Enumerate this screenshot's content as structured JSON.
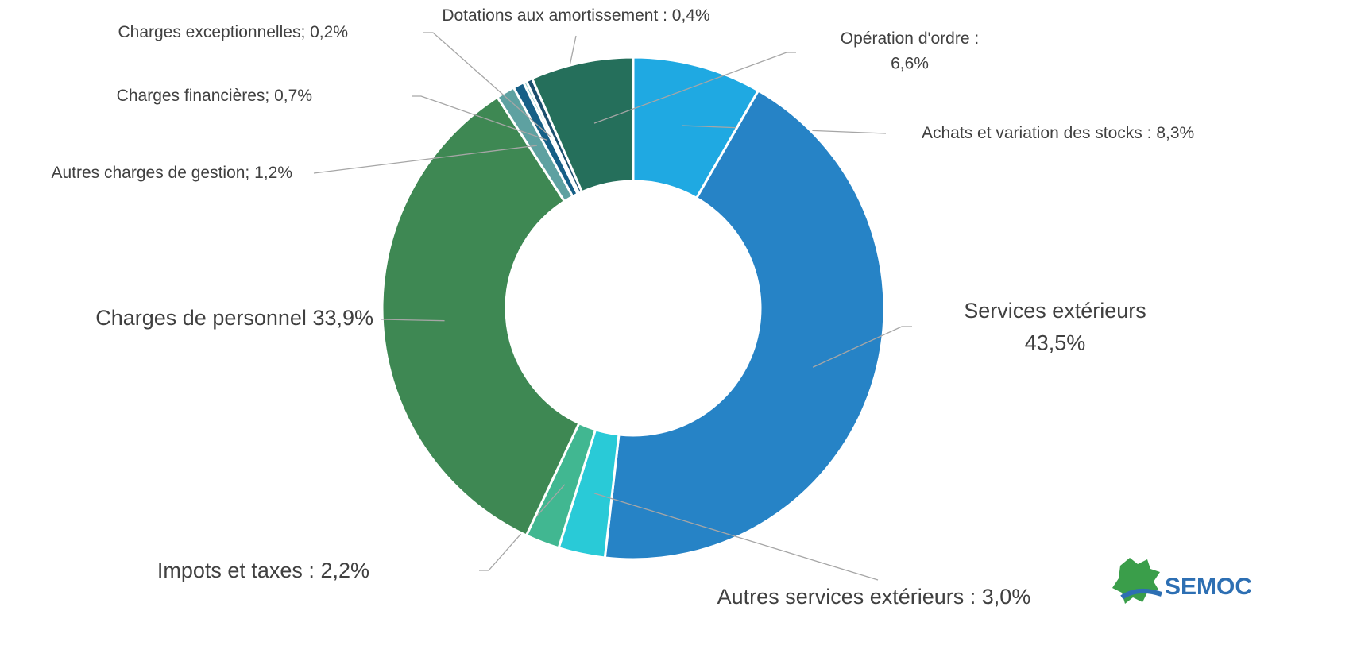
{
  "chart_data": {
    "type": "donut",
    "categories": [
      "Achats et variation des stocks :",
      "Services extérieurs",
      "Autres services extérieurs :",
      "Impots et taxes :",
      "Charges de personnel",
      "Autres charges de gestion;",
      "Charges financières;",
      "Charges exceptionnelles;",
      "Dotations aux amortissement :",
      "Opération d'ordre :"
    ],
    "values": [
      8.3,
      43.5,
      3.0,
      2.2,
      33.9,
      1.2,
      0.7,
      0.2,
      0.4,
      6.6
    ],
    "value_labels": [
      "8,3%",
      "43,5%",
      "3,0%",
      "2,2%",
      "33,9%",
      "1,2%",
      "0,7%",
      "0,2%",
      "0,4%",
      "6,6%"
    ],
    "colors": [
      "#1fa9e2",
      "#2683c6",
      "#29cad7",
      "#41b791",
      "#3e8853",
      "#5ea1a1",
      "#165f86",
      "#7fc3c0",
      "#1c4f6e",
      "#256f5b"
    ]
  },
  "logo": "SEMOC"
}
